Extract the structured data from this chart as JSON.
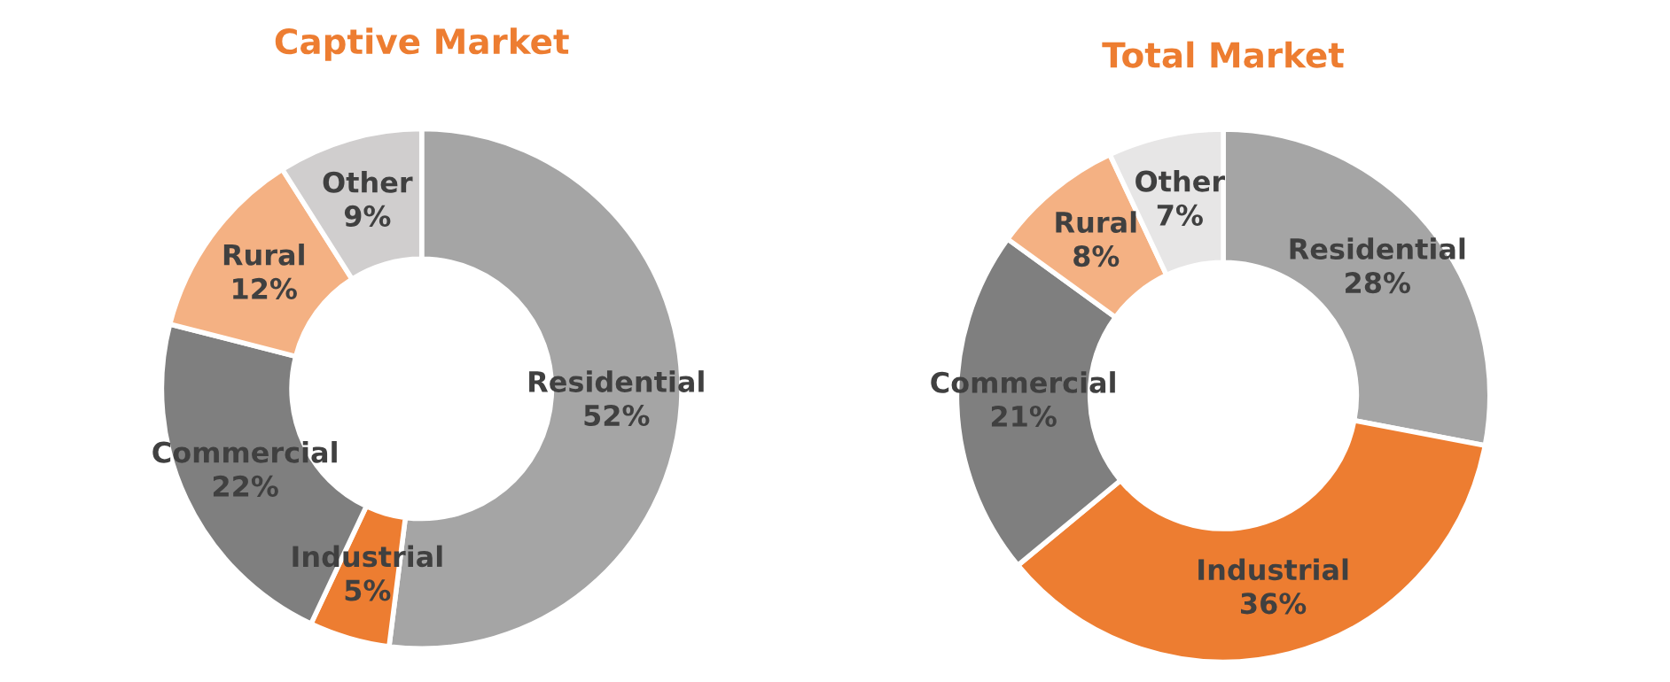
{
  "chart_data": [
    {
      "type": "donut",
      "title": "Captive Market",
      "categories": [
        "Residential",
        "Industrial",
        "Commercial",
        "Rural",
        "Other"
      ],
      "values": [
        52,
        5,
        22,
        12,
        9
      ],
      "value_labels": [
        "52%",
        "5%",
        "22%",
        "12%",
        "9%"
      ],
      "colors": [
        "#a5a5a5",
        "#ed7d31",
        "#7f7f7f",
        "#f4b183",
        "#d0cece"
      ]
    },
    {
      "type": "donut",
      "title": "Total Market",
      "categories": [
        "Residential",
        "Industrial",
        "Commercial",
        "Rural",
        "Other"
      ],
      "values": [
        28,
        36,
        21,
        8,
        7
      ],
      "value_labels": [
        "28%",
        "36%",
        "21%",
        "8%",
        "7%"
      ],
      "colors": [
        "#a5a5a5",
        "#ed7d31",
        "#7f7f7f",
        "#f4b183",
        "#e7e6e6"
      ]
    }
  ]
}
